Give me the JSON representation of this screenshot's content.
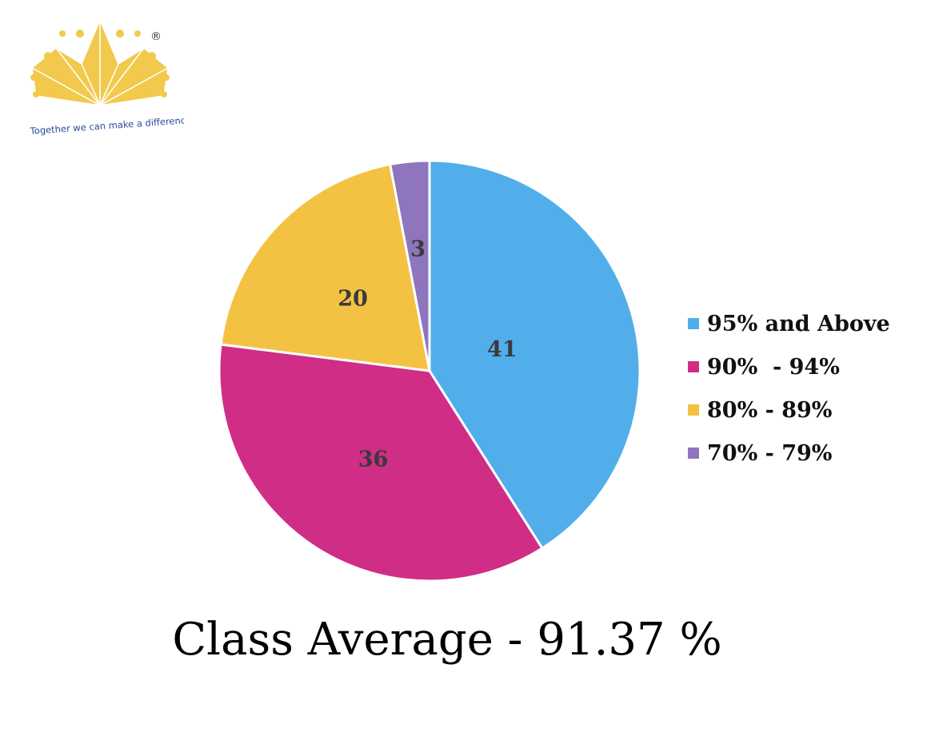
{
  "logo": {
    "tagline": "Together we can make a difference",
    "mark": "®",
    "color": "#F2C94C",
    "text_color": "#2A4B9B"
  },
  "chart_data": {
    "type": "pie",
    "categories": [
      "95% and Above",
      "90%  - 94%",
      "80% - 89%",
      "70% - 79%"
    ],
    "values": [
      41,
      36,
      20,
      3
    ],
    "colors": [
      "#52AEEB",
      "#D02D87",
      "#F4C242",
      "#8E75BE"
    ],
    "legend_position": "right"
  },
  "footer": {
    "text": "Class Average - 91.37 %"
  }
}
